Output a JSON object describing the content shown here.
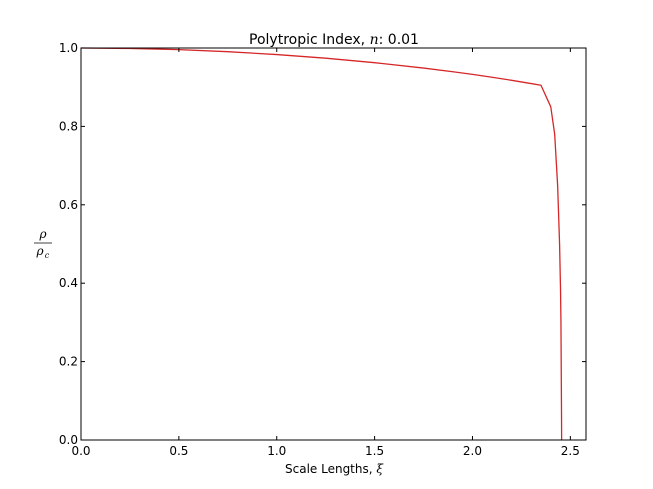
{
  "chart_data": {
    "type": "line",
    "title": {
      "prefix": "Polytropic Index, ",
      "symbol": "n",
      "suffix": ": 0.01"
    },
    "xlabel": {
      "prefix": "Scale Lengths, ",
      "symbol": "ξ"
    },
    "ylabel": {
      "numerator": "ρ",
      "denominator": "ρ",
      "denominator_subscript": "c"
    },
    "xlim": [
      0.0,
      2.58
    ],
    "ylim": [
      0.0,
      1.0
    ],
    "xticks": [
      {
        "value": 0.0,
        "label": "0.0"
      },
      {
        "value": 0.5,
        "label": "0.5"
      },
      {
        "value": 1.0,
        "label": "1.0"
      },
      {
        "value": 1.5,
        "label": "1.5"
      },
      {
        "value": 2.0,
        "label": "2.0"
      },
      {
        "value": 2.5,
        "label": "2.5"
      }
    ],
    "yticks": [
      {
        "value": 0.0,
        "label": "0.0"
      },
      {
        "value": 0.2,
        "label": "0.2"
      },
      {
        "value": 0.4,
        "label": "0.4"
      },
      {
        "value": 0.6,
        "label": "0.6"
      },
      {
        "value": 0.8,
        "label": "0.8"
      },
      {
        "value": 1.0,
        "label": "1.0"
      }
    ],
    "grid": false,
    "series": [
      {
        "color": "#d62728",
        "x": [
          0.0,
          0.25,
          0.5,
          0.75,
          1.0,
          1.25,
          1.5,
          1.75,
          1.9,
          2.0,
          2.1,
          2.2,
          2.3,
          2.35,
          2.4,
          2.42,
          2.435,
          2.445,
          2.45,
          2.452,
          2.453,
          2.454,
          2.455,
          2.4555
        ],
        "y": [
          1.0,
          0.9989,
          0.9958,
          0.9906,
          0.9833,
          0.974,
          0.9625,
          0.9488,
          0.9395,
          0.9327,
          0.9254,
          0.9176,
          0.9093,
          0.905,
          0.85,
          0.78,
          0.65,
          0.5,
          0.38,
          0.3,
          0.22,
          0.14,
          0.06,
          0.0
        ]
      }
    ]
  }
}
